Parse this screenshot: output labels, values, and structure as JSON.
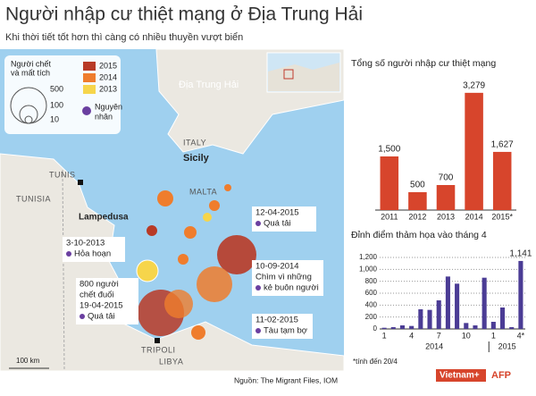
{
  "header": {
    "title": "Người nhập cư thiệt mạng ở Địa Trung Hải",
    "subtitle": "Khi thời tiết tốt hơn thì càng có nhiều thuyền vượt biển"
  },
  "map": {
    "legend": {
      "size_title": [
        "Người chết",
        "và mất tích"
      ],
      "sizes": [
        "500",
        "100",
        "10"
      ],
      "years": [
        {
          "label": "2015",
          "color": "#b83a26"
        },
        {
          "label": "2014",
          "color": "#ef7d2d"
        },
        {
          "label": "2013",
          "color": "#f6d54b"
        }
      ],
      "cause": [
        "Nguyên",
        "nhân"
      ]
    },
    "places": {
      "sea": "Địa Trung Hải",
      "italy": "ITALY",
      "sicily": "Sicily",
      "malta": "MALTA",
      "tunis": "TUNIS",
      "tunisia": "TUNISIA",
      "lampedusa": "Lampedusa",
      "tripoli": "TRIPOLI",
      "libya": "LIBYA"
    },
    "scale": "100 km",
    "annotations": [
      {
        "lines": [
          "12-04-2015",
          "Quá tải"
        ]
      },
      {
        "lines": [
          "3-10-2013",
          "Hỏa hoạn"
        ]
      },
      {
        "lines": [
          "10-09-2014",
          "Chìm vì những",
          "kẻ buôn người"
        ]
      },
      {
        "lines": [
          "800 người",
          "chết đuối",
          "19-04-2015",
          "Quá tải"
        ]
      },
      {
        "lines": [
          "11-02-2015",
          "Tàu tạm bợ"
        ]
      }
    ]
  },
  "chart_data": [
    {
      "type": "bar",
      "title": "Tổng số người nhập cư thiệt mạng",
      "color": "#d7452c",
      "categories": [
        "2011",
        "2012",
        "2013",
        "2014",
        "2015*"
      ],
      "values": [
        1500,
        500,
        700,
        3279,
        1627
      ],
      "value_labels": [
        "1,500",
        "500",
        "700",
        "3,279",
        "1,627"
      ],
      "ylim": [
        0,
        3500
      ]
    },
    {
      "type": "bar",
      "title": "Đỉnh điểm thảm họa vào tháng 4",
      "color": "#4b3c95",
      "categories": [
        "1",
        null,
        null,
        "4",
        null,
        null,
        "7",
        null,
        null,
        "10",
        null,
        null,
        "1",
        null,
        null,
        "4*"
      ],
      "x_groups": [
        "2014",
        "2015"
      ],
      "values": [
        20,
        30,
        60,
        50,
        330,
        320,
        480,
        880,
        760,
        100,
        60,
        860,
        120,
        360,
        30,
        1141
      ],
      "value_labels": [
        null,
        null,
        null,
        null,
        null,
        null,
        null,
        null,
        null,
        null,
        null,
        null,
        null,
        null,
        null,
        "1,141"
      ],
      "ylim": [
        0,
        1200
      ],
      "yticks": [
        0,
        200,
        400,
        600,
        800,
        {
          "value": 1000,
          "label": "1,000"
        },
        {
          "value": 1200,
          "label": "1,200"
        }
      ],
      "grid": true
    }
  ],
  "footer": {
    "source": "Nguồn: The Migrant Files, IOM",
    "note": "*tính đến 20/4",
    "logo1": "Vietnam+",
    "logo2": "AFP"
  }
}
